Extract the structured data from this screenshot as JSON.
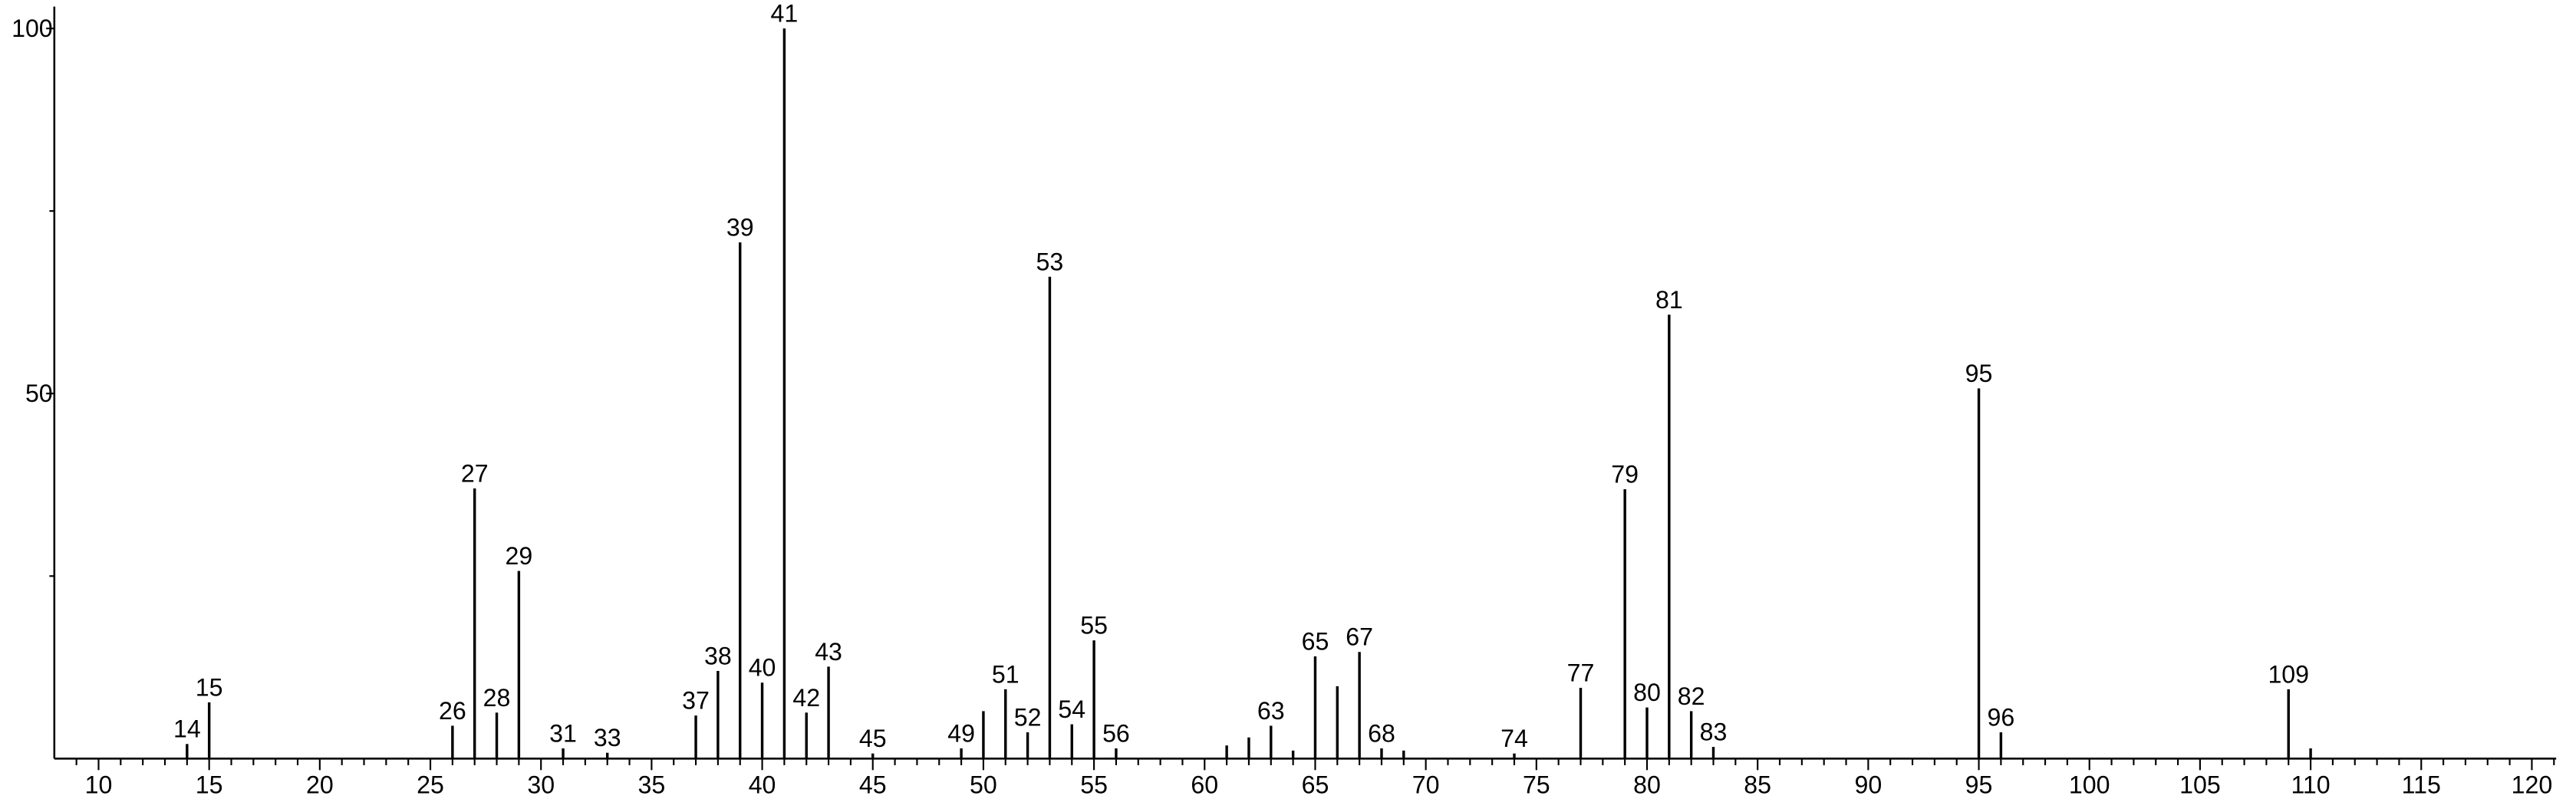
{
  "chart_data": {
    "type": "stem",
    "x": [
      14,
      15,
      26,
      27,
      28,
      29,
      31,
      33,
      37,
      38,
      39,
      40,
      41,
      42,
      43,
      45,
      49,
      50,
      51,
      52,
      53,
      54,
      55,
      56,
      61,
      62,
      63,
      64,
      65,
      66,
      67,
      68,
      69,
      74,
      77,
      79,
      80,
      81,
      82,
      83,
      95,
      96,
      109,
      110
    ],
    "values": [
      2,
      7.7,
      4.5,
      37,
      6.3,
      25.7,
      1.4,
      0.8,
      5.9,
      12,
      70.7,
      10.4,
      100,
      6.3,
      12.6,
      0.7,
      1.4,
      6.5,
      9.5,
      3.6,
      66,
      4.7,
      16.2,
      1.4,
      1.8,
      2.9,
      4.5,
      1.1,
      14,
      9.9,
      14.6,
      1.4,
      1.1,
      0.7,
      9.7,
      36.9,
      7,
      60.8,
      6.5,
      1.6,
      50.7,
      3.6,
      9.5,
      1.4
    ],
    "x_labels": [
      "14",
      "15",
      "26",
      "27",
      "28",
      "29",
      "31",
      "33",
      "37",
      "38",
      "39",
      "40",
      "41",
      "42",
      "43",
      "45",
      "49",
      null,
      "51",
      "52",
      "53",
      "54",
      "55",
      "56",
      null,
      null,
      "63",
      null,
      "65",
      null,
      "67",
      "68",
      null,
      "74",
      "77",
      "79",
      "80",
      "81",
      "82",
      "83",
      "95",
      "96",
      "109",
      null
    ],
    "color": "#000000",
    "xlim": [
      8,
      121.1
    ],
    "ylim": [
      0,
      103
    ],
    "xticks": [
      10,
      15,
      20,
      25,
      30,
      35,
      40,
      45,
      50,
      55,
      60,
      65,
      70,
      75,
      80,
      85,
      90,
      95,
      100,
      105,
      110,
      115,
      120
    ],
    "xminorticks": [
      9,
      11,
      12,
      13,
      14,
      16,
      17,
      18,
      19,
      21,
      22,
      23,
      24,
      26,
      27,
      28,
      29,
      31,
      32,
      33,
      34,
      36,
      37,
      38,
      39,
      41,
      42,
      43,
      44,
      46,
      47,
      48,
      49,
      51,
      52,
      53,
      54,
      56,
      57,
      58,
      59,
      61,
      62,
      63,
      64,
      66,
      67,
      68,
      69,
      71,
      72,
      73,
      74,
      76,
      77,
      78,
      79,
      81,
      82,
      83,
      84,
      86,
      87,
      88,
      89,
      91,
      92,
      93,
      94,
      96,
      97,
      98,
      99,
      101,
      102,
      103,
      104,
      106,
      107,
      108,
      109,
      111,
      112,
      113,
      114,
      116,
      117,
      118,
      119,
      121
    ],
    "yticks": [
      50,
      100
    ],
    "yminorticks": [
      25,
      75
    ]
  }
}
